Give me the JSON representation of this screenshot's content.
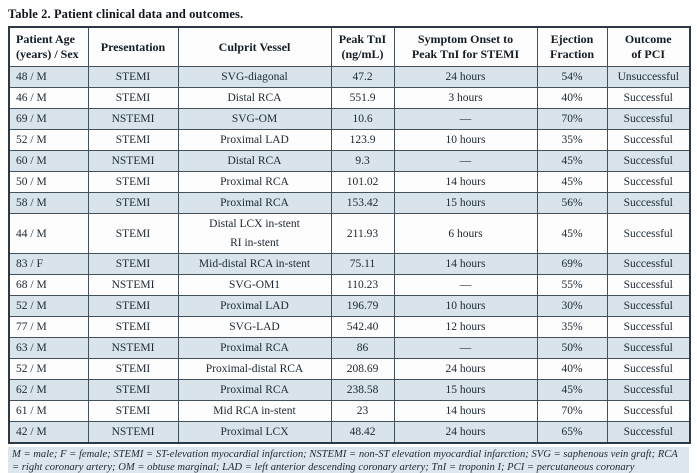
{
  "title": "Table 2. Patient clinical data and outcomes.",
  "colors": {
    "row_alt": "#d8e4ea",
    "row_plain": "#fdfdfd",
    "border_inner": "#42515d",
    "border_outer": "#2d3a45",
    "footnote_bg": "#dce7ed",
    "text": "#1c2733"
  },
  "table": {
    "columns": [
      "Patient Age\n(years) / Sex",
      "Presentation",
      "Culprit Vessel",
      "Peak TnI\n(ng/mL)",
      "Symptom Onset to\nPeak TnI for STEMI",
      "Ejection\nFraction",
      "Outcome\nof PCI"
    ],
    "rows": [
      [
        "48 / M",
        "STEMI",
        "SVG-diagonal",
        "47.2",
        "24 hours",
        "54%",
        "Unsuccessful"
      ],
      [
        "46 / M",
        "STEMI",
        "Distal RCA",
        "551.9",
        "3 hours",
        "40%",
        "Successful"
      ],
      [
        "69 / M",
        "NSTEMI",
        "SVG-OM",
        "10.6",
        "—",
        "70%",
        "Successful"
      ],
      [
        "52 / M",
        "STEMI",
        "Proximal LAD",
        "123.9",
        "10 hours",
        "35%",
        "Successful"
      ],
      [
        "60 / M",
        "NSTEMI",
        "Distal RCA",
        "9.3",
        "—",
        "45%",
        "Successful"
      ],
      [
        "50 / M",
        "STEMI",
        "Proximal RCA",
        "101.02",
        "14 hours",
        "45%",
        "Successful"
      ],
      [
        "58 / M",
        "STEMI",
        "Proximal RCA",
        "153.42",
        "15 hours",
        "56%",
        "Successful"
      ],
      [
        "44 / M",
        "STEMI",
        "Distal LCX in-stent\nRI in-stent",
        "211.93",
        "6 hours",
        "45%",
        "Successful"
      ],
      [
        "83 / F",
        "STEMI",
        "Mid-distal RCA in-stent",
        "75.11",
        "14 hours",
        "69%",
        "Successful"
      ],
      [
        "68 / M",
        "NSTEMI",
        "SVG-OM1",
        "110.23",
        "—",
        "55%",
        "Successful"
      ],
      [
        "52 / M",
        "STEMI",
        "Proximal LAD",
        "196.79",
        "10 hours",
        "30%",
        "Successful"
      ],
      [
        "77 / M",
        "STEMI",
        "SVG-LAD",
        "542.40",
        "12 hours",
        "35%",
        "Successful"
      ],
      [
        "63 / M",
        "NSTEMI",
        "Proximal RCA",
        "86",
        "—",
        "50%",
        "Successful"
      ],
      [
        "52 / M",
        "STEMI",
        "Proximal-distal RCA",
        "208.69",
        "24 hours",
        "40%",
        "Successful"
      ],
      [
        "62 / M",
        "STEMI",
        "Proximal RCA",
        "238.58",
        "15 hours",
        "45%",
        "Successful"
      ],
      [
        "61 / M",
        "STEMI",
        "Mid RCA in-stent",
        "23",
        "14 hours",
        "70%",
        "Successful"
      ],
      [
        "42 / M",
        "NSTEMI",
        "Proximal LCX",
        "48.42",
        "24 hours",
        "65%",
        "Successful"
      ]
    ]
  },
  "footnote": "M = male; F = female; STEMI = ST-elevation myocardial infarction; NSTEMI = non-ST elevation myocardial infarction; SVG = saphenous vein graft; RCA = right coronary artery; OM = obtuse marginal; LAD = left anterior descending coronary artery; TnI = troponin I; PCI = percutaneous coronary intervention."
}
